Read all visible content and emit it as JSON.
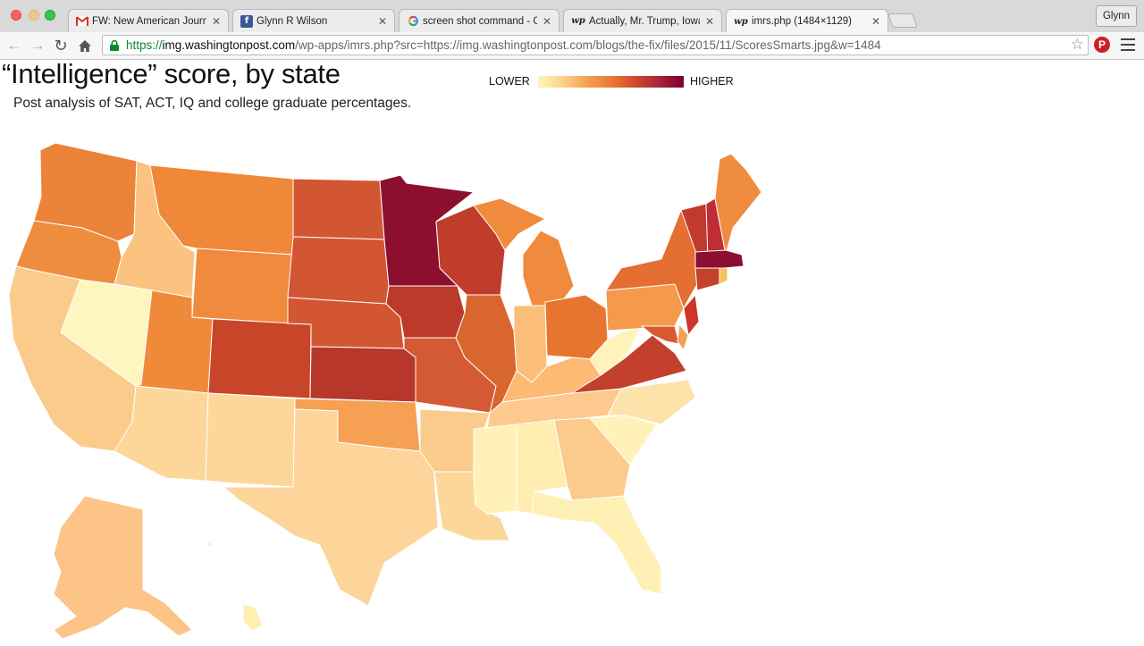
{
  "window": {
    "profile_name": "Glynn"
  },
  "tabs": [
    {
      "favicon": "gmail-icon",
      "title": "FW: New American Journal",
      "active": false
    },
    {
      "favicon": "facebook-icon",
      "title": "Glynn R Wilson",
      "active": false
    },
    {
      "favicon": "google-icon",
      "title": "screen shot command - Go",
      "active": false
    },
    {
      "favicon": "washington-post-icon",
      "title": "Actually, Mr. Trump, Iowa is",
      "active": false
    },
    {
      "favicon": "washington-post-icon",
      "title": "imrs.php (1484×1129)",
      "active": true
    }
  ],
  "omnibox": {
    "scheme": "https://",
    "host": "img.washingtonpost.com",
    "path": "/wp-apps/imrs.php?src=https://img.washingtonpost.com/blogs/the-fix/files/2015/11/ScoresSmarts.jpg&w=1484"
  },
  "graphic": {
    "title": "“Intelligence” score, by state",
    "subtitle": "Post analysis of SAT, ACT, IQ and college graduate percentages.",
    "legend_low": "LOWER",
    "legend_high": "HIGHER",
    "scale_colors": [
      "#fff5c0",
      "#fbd38a",
      "#f5a14f",
      "#eb7a35",
      "#d04a2e",
      "#a8243a",
      "#7a0030"
    ]
  }
}
